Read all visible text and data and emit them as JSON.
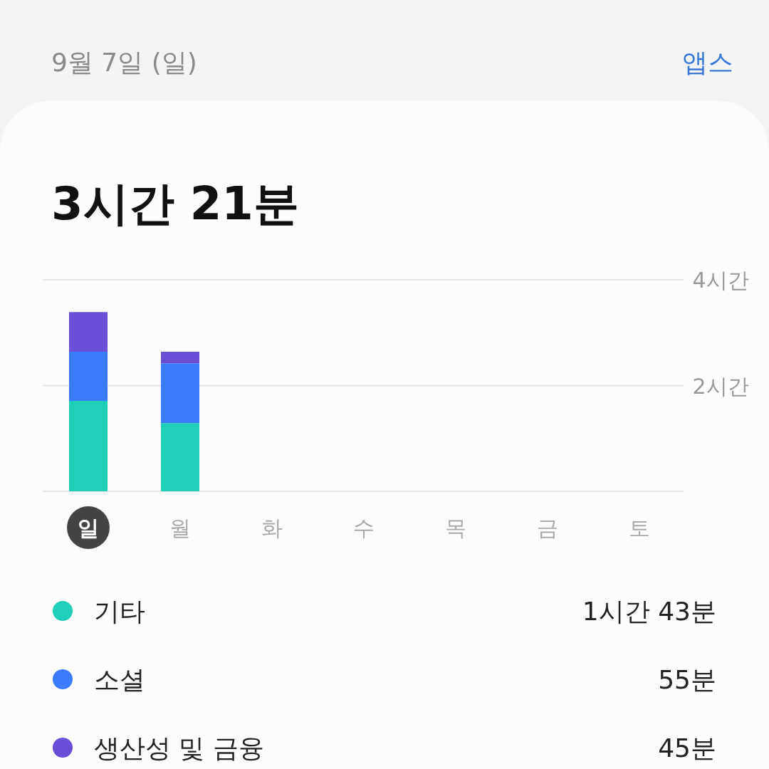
{
  "chart_data": {
    "type": "bar",
    "stacked": true,
    "title": "3시간 21분",
    "subtitle": "9월 7일 (일)",
    "categories": [
      "일",
      "월",
      "화",
      "수",
      "목",
      "금",
      "토"
    ],
    "series": [
      {
        "name": "기타",
        "color": "#1fcfb8",
        "values": [
          1.71,
          1.29,
          null,
          null,
          null,
          null,
          null
        ]
      },
      {
        "name": "소셜",
        "color": "#3a7bff",
        "values": [
          0.93,
          1.13,
          null,
          null,
          null,
          null,
          null
        ]
      },
      {
        "name": "생산성 및 금융",
        "color": "#6a4fd6",
        "values": [
          0.75,
          0.22,
          null,
          null,
          null,
          null,
          null
        ]
      }
    ],
    "ylim": [
      0,
      4
    ],
    "yticks": [
      {
        "value": 0,
        "label": null
      },
      {
        "value": 2,
        "label": "2시간"
      },
      {
        "value": 4,
        "label": "4시간"
      }
    ],
    "grid": "y",
    "legend": "bottom",
    "annotations": [
      "앱스",
      "1시간 43분",
      "55분",
      "45분"
    ]
  }
}
